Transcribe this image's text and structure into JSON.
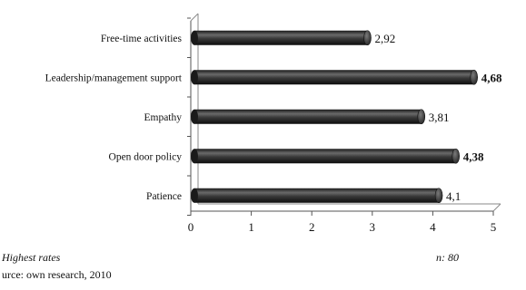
{
  "chart_data": {
    "type": "bar",
    "orientation": "horizontal",
    "categories": [
      "Free-time activities",
      "Leadership/management support",
      "Empathy",
      "Open door policy",
      "Patience"
    ],
    "values": [
      2.92,
      4.68,
      3.81,
      4.38,
      4.1
    ],
    "value_labels": [
      "2,92",
      "4,68",
      "3,81",
      "4,38",
      "4,1"
    ],
    "highlighted": [
      false,
      true,
      false,
      true,
      false
    ],
    "xlim": [
      0,
      5
    ],
    "x_ticks": [
      0,
      1,
      2,
      3,
      4,
      5
    ],
    "x_tick_labels": [
      "0",
      "1",
      "2",
      "3",
      "4",
      "5"
    ],
    "grid": false,
    "style": "3d-cylinder",
    "bar_color": "#2f2f2f",
    "legend_note": "Highest rates",
    "sample_note": "n: 80",
    "source_note": "urce: own research, 2010"
  }
}
